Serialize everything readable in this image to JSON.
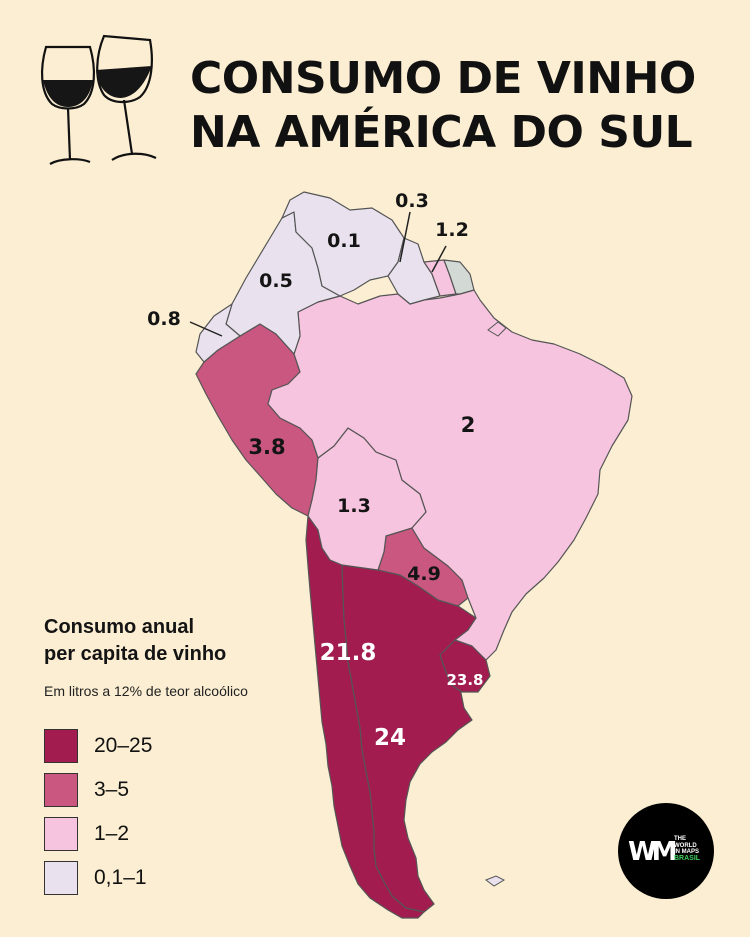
{
  "title": {
    "line1": "CONSUMO DE VINHO",
    "line2": "NA AMÉRICA DO SUL"
  },
  "legend": {
    "title_line1": "Consumo anual",
    "title_line2": "per capita de vinho",
    "subtitle": "Em litros a 12% de teor alcoólico",
    "items": [
      {
        "label": "20–25",
        "color": "#a31c50"
      },
      {
        "label": "3–5",
        "color": "#c9577f"
      },
      {
        "label": "1–2",
        "color": "#f7c4df"
      },
      {
        "label": "0,1–1",
        "color": "#e9e2ee"
      }
    ]
  },
  "regions": {
    "venezuela": "0.1",
    "colombia": "0.5",
    "ecuador": "0.8",
    "guyana_suriname": "0.3",
    "french_guiana": "1.2",
    "brazil": "2",
    "peru": "3.8",
    "bolivia": "1.3",
    "paraguay": "4.9",
    "chile": "21.8",
    "argentina": "24",
    "uruguay": "23.8"
  },
  "colors": {
    "background": "#fbeed2",
    "tier_20_25": "#a31c50",
    "tier_3_5": "#c9577f",
    "tier_1_2": "#f7c4df",
    "tier_01_1": "#e9e2ee",
    "no_data": "#d3dad6",
    "border": "#555555"
  },
  "icons": {
    "header": "wine-glasses-icon"
  },
  "logo": {
    "line1": "THE",
    "line2": "WORLD",
    "line3": "IN MAPS",
    "line4": "BRASIL"
  }
}
